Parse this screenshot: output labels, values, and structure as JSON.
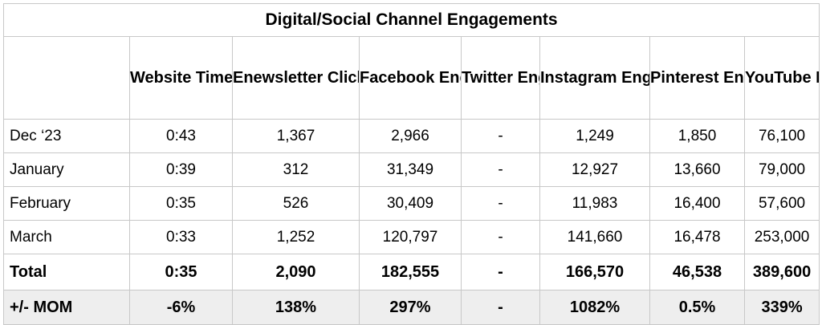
{
  "title": "Digital/Social Channel Engagements",
  "columns": [
    "",
    "Website Time on Site",
    "Enewsletter Clicks",
    "Facebook Engmts",
    "Twitter Engmts",
    "Instagram Engmts",
    "Pinterest Engmts",
    "YouTube Engmts"
  ],
  "rows": [
    [
      "Dec ‘23",
      "0:43",
      "1,367",
      "2,966",
      "-",
      "1,249",
      "1,850",
      "76,100"
    ],
    [
      "January",
      "0:39",
      "312",
      "31,349",
      "-",
      "12,927",
      "13,660",
      "79,000"
    ],
    [
      "February",
      "0:35",
      "526",
      "30,409",
      "-",
      "11,983",
      "16,400",
      "57,600"
    ],
    [
      "March",
      "0:33",
      "1,252",
      "120,797",
      "-",
      "141,660",
      "16,478",
      "253,000"
    ]
  ],
  "total": [
    "Total",
    "0:35",
    "2,090",
    "182,555",
    "-",
    "166,570",
    "46,538",
    "389,600"
  ],
  "mom": [
    "+/- MOM",
    "-6%",
    "138%",
    "297%",
    "-",
    "1082%",
    "0.5%",
    "339%"
  ],
  "colors": {
    "grid": "#c8c8c8",
    "mom_row_bg": "#eeeeee"
  }
}
